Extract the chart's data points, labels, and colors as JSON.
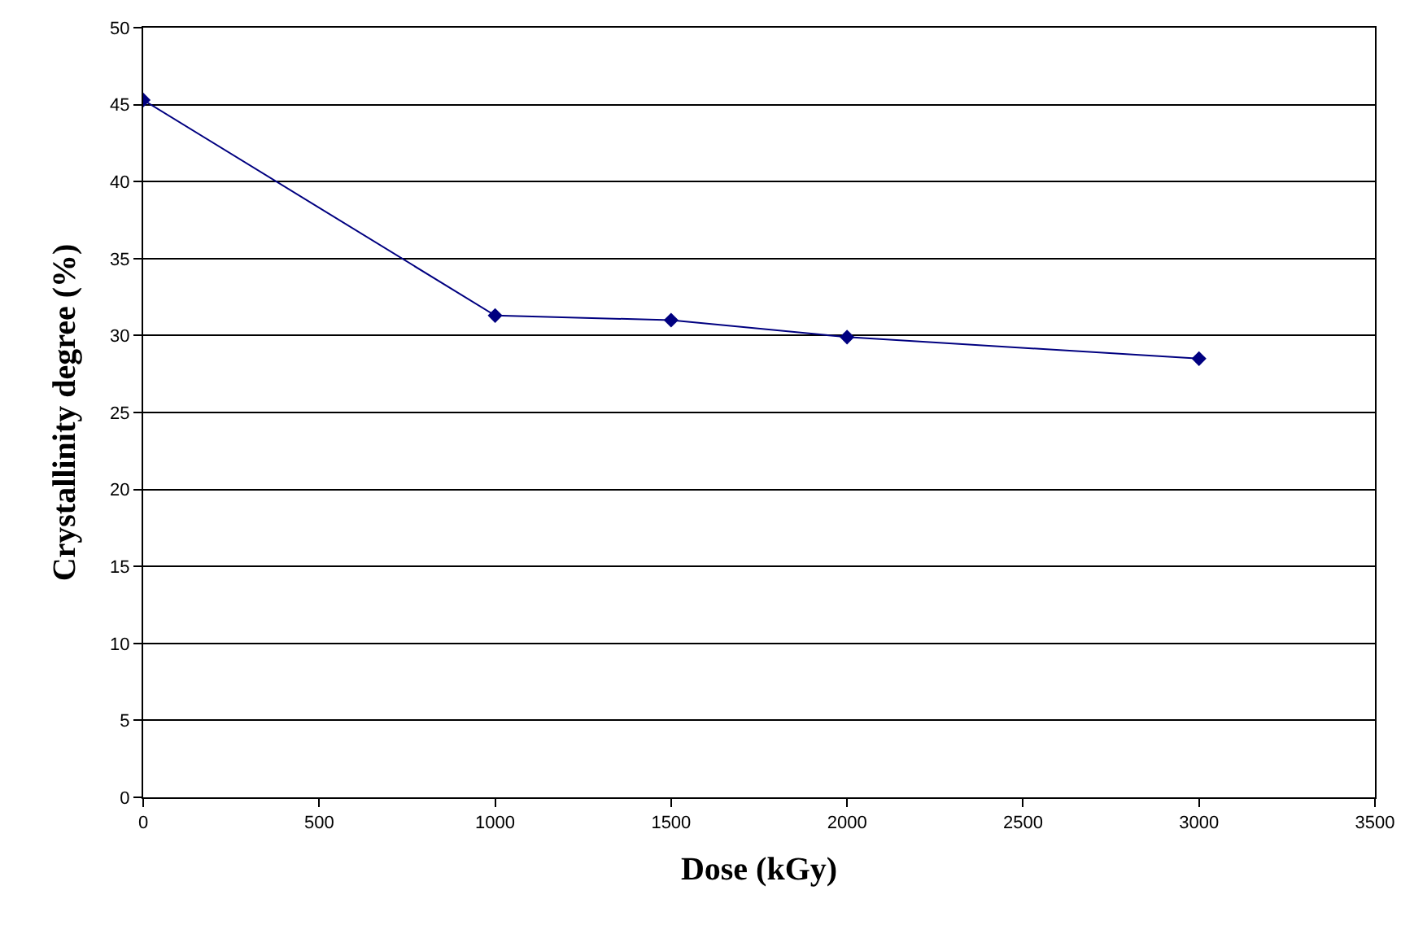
{
  "chart_data": {
    "type": "line",
    "xlabel": "Dose (kGy)",
    "ylabel": "Crystallinity degree (%)",
    "x": [
      0,
      1000,
      1500,
      2000,
      3000
    ],
    "series": [
      {
        "color": "#000080",
        "values": [
          45.3,
          31.3,
          31.0,
          29.9,
          28.5
        ]
      }
    ],
    "xlim": [
      0,
      3500
    ],
    "xticks": [
      0,
      500,
      1000,
      1500,
      2000,
      2500,
      3000,
      3500
    ],
    "ylim": [
      0,
      50
    ],
    "yticks": [
      0,
      5,
      10,
      15,
      20,
      25,
      30,
      35,
      40,
      45,
      50
    ],
    "grid": "y",
    "legend": false,
    "marker": "diamond",
    "line_style": "solid"
  }
}
